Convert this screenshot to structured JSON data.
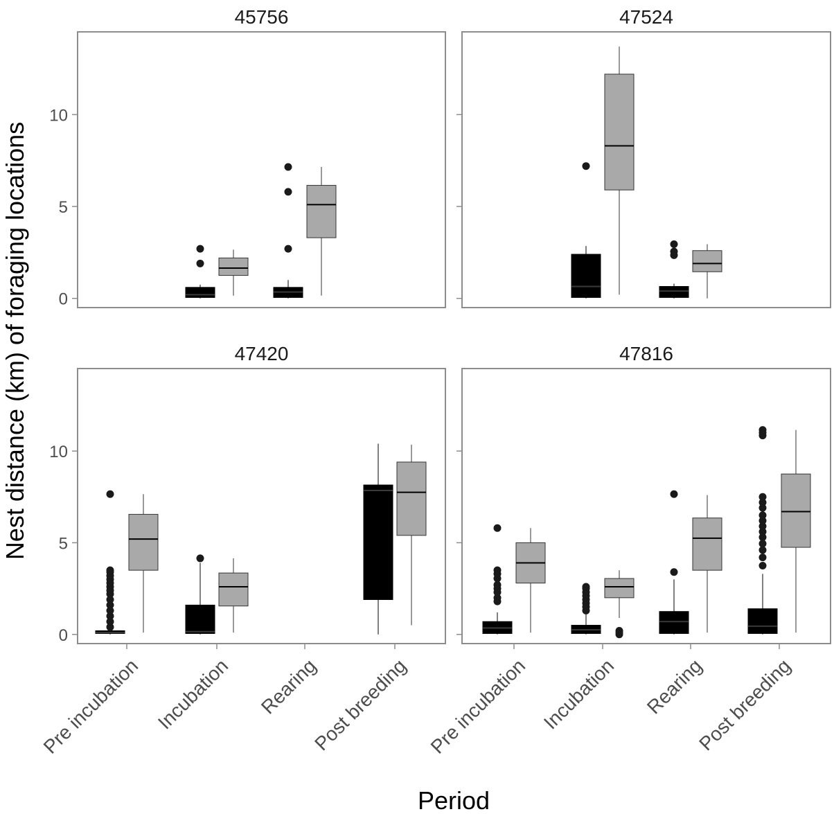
{
  "chart_data": {
    "type": "box",
    "xlabel": "Period",
    "ylabel": "Nest distance (km) of foraging locations",
    "categories": [
      "Pre incubation",
      "Incubation",
      "Rearing",
      "Post breeding"
    ],
    "yticks": [
      0,
      5,
      10
    ],
    "ylim": [
      -0.5,
      14.5
    ],
    "colors": {
      "dark": "#000000",
      "light": "#a9a9a9",
      "outline": "#333333",
      "outlier": "#1a1a1a"
    },
    "panels": [
      {
        "title": "45756",
        "boxes": [
          {
            "category": "Incubation",
            "series": "dark",
            "min": 0.0,
            "q1": 0.05,
            "median": 0.2,
            "q3": 0.6,
            "max": 0.75,
            "outliers": [
              1.9,
              2.7
            ]
          },
          {
            "category": "Incubation",
            "series": "light",
            "min": 0.15,
            "q1": 1.25,
            "median": 1.65,
            "q3": 2.2,
            "max": 2.65,
            "outliers": []
          },
          {
            "category": "Rearing",
            "series": "dark",
            "min": 0.0,
            "q1": 0.05,
            "median": 0.35,
            "q3": 0.6,
            "max": 1.0,
            "outliers": [
              2.7,
              5.8,
              7.15
            ]
          },
          {
            "category": "Rearing",
            "series": "light",
            "min": 0.15,
            "q1": 3.3,
            "median": 5.1,
            "q3": 6.15,
            "max": 7.15,
            "outliers": []
          }
        ]
      },
      {
        "title": "47524",
        "boxes": [
          {
            "category": "Incubation",
            "series": "dark",
            "min": 0.0,
            "q1": 0.05,
            "median": 0.65,
            "q3": 2.4,
            "max": 2.85,
            "outliers": [
              7.2
            ]
          },
          {
            "category": "Incubation",
            "series": "light",
            "min": 0.2,
            "q1": 5.9,
            "median": 8.3,
            "q3": 12.2,
            "max": 13.7,
            "outliers": []
          },
          {
            "category": "Rearing",
            "series": "dark",
            "min": 0.0,
            "q1": 0.05,
            "median": 0.4,
            "q3": 0.65,
            "max": 0.8,
            "outliers": [
              2.35,
              2.55,
              2.95
            ]
          },
          {
            "category": "Rearing",
            "series": "light",
            "min": 0.0,
            "q1": 1.45,
            "median": 1.9,
            "q3": 2.6,
            "max": 2.95,
            "outliers": []
          }
        ]
      },
      {
        "title": "47420",
        "boxes": [
          {
            "category": "Pre incubation",
            "series": "dark",
            "min": 0.0,
            "q1": 0.05,
            "median": 0.1,
            "q3": 0.2,
            "max": 0.25,
            "outliers": [
              0.4,
              0.7,
              1.0,
              1.3,
              1.6,
              1.9,
              2.2,
              2.4,
              2.6,
              2.8,
              3.0,
              3.2,
              3.4,
              3.5,
              7.65
            ]
          },
          {
            "category": "Pre incubation",
            "series": "light",
            "min": 0.1,
            "q1": 3.5,
            "median": 5.2,
            "q3": 6.55,
            "max": 7.65,
            "outliers": []
          },
          {
            "category": "Incubation",
            "series": "dark",
            "min": 0.0,
            "q1": 0.05,
            "median": 0.15,
            "q3": 1.6,
            "max": 3.9,
            "outliers": [
              4.15
            ]
          },
          {
            "category": "Incubation",
            "series": "light",
            "min": 0.1,
            "q1": 1.55,
            "median": 2.6,
            "q3": 3.35,
            "max": 4.15,
            "outliers": []
          },
          {
            "category": "Post breeding",
            "series": "dark",
            "min": 0.0,
            "q1": 1.9,
            "median": 7.85,
            "q3": 8.15,
            "max": 10.4,
            "outliers": []
          },
          {
            "category": "Post breeding",
            "series": "light",
            "min": 0.5,
            "q1": 5.4,
            "median": 7.75,
            "q3": 9.4,
            "max": 10.35,
            "outliers": []
          }
        ]
      },
      {
        "title": "47816",
        "boxes": [
          {
            "category": "Pre incubation",
            "series": "dark",
            "min": 0.0,
            "q1": 0.05,
            "median": 0.35,
            "q3": 0.7,
            "max": 1.2,
            "outliers": [
              1.8,
              2.0,
              2.3,
              2.5,
              2.7,
              3.05,
              3.3,
              3.5,
              5.8
            ]
          },
          {
            "category": "Pre incubation",
            "series": "light",
            "min": 0.1,
            "q1": 2.8,
            "median": 3.9,
            "q3": 5.0,
            "max": 5.8,
            "outliers": []
          },
          {
            "category": "Incubation",
            "series": "dark",
            "min": 0.0,
            "q1": 0.05,
            "median": 0.25,
            "q3": 0.5,
            "max": 1.1,
            "outliers": [
              1.3,
              1.5,
              1.7,
              1.9,
              2.1,
              2.3,
              2.5,
              2.6
            ]
          },
          {
            "category": "Incubation",
            "series": "light",
            "min": 0.9,
            "q1": 2.0,
            "median": 2.6,
            "q3": 3.05,
            "max": 3.5,
            "outliers": [
              0.0,
              0.1,
              0.2
            ]
          },
          {
            "category": "Rearing",
            "series": "dark",
            "min": 0.0,
            "q1": 0.05,
            "median": 0.7,
            "q3": 1.25,
            "max": 3.0,
            "outliers": [
              3.4,
              7.65
            ]
          },
          {
            "category": "Rearing",
            "series": "light",
            "min": 0.1,
            "q1": 3.5,
            "median": 5.25,
            "q3": 6.35,
            "max": 7.6,
            "outliers": []
          },
          {
            "category": "Post breeding",
            "series": "dark",
            "min": 0.0,
            "q1": 0.05,
            "median": 0.45,
            "q3": 1.4,
            "max": 3.3,
            "outliers": [
              3.75,
              4.2,
              4.6,
              4.95,
              5.3,
              5.6,
              5.9,
              6.2,
              6.5,
              6.9,
              7.2,
              7.5,
              10.85,
              11.0,
              11.15
            ]
          },
          {
            "category": "Post breeding",
            "series": "light",
            "min": 0.1,
            "q1": 4.75,
            "median": 6.7,
            "q3": 8.75,
            "max": 11.15,
            "outliers": []
          }
        ]
      }
    ]
  }
}
